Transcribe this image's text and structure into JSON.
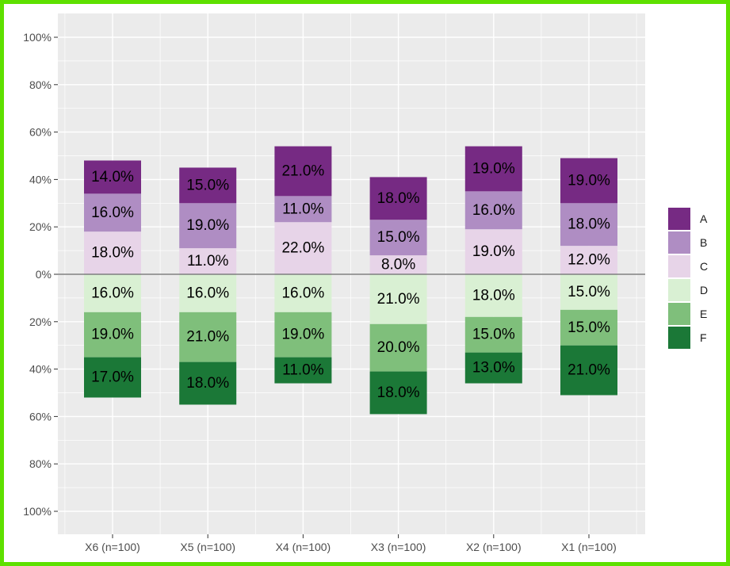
{
  "chart_data": {
    "type": "bar",
    "orientation": "diverging-stacked",
    "title": "",
    "xlabel": "",
    "ylabel": "",
    "ylim": [
      -1.0,
      1.0
    ],
    "y_ticks": [
      {
        "value": 1.0,
        "label": "100%"
      },
      {
        "value": 0.8,
        "label": "80%"
      },
      {
        "value": 0.6,
        "label": "60%"
      },
      {
        "value": 0.4,
        "label": "40%"
      },
      {
        "value": 0.2,
        "label": "20%"
      },
      {
        "value": 0.0,
        "label": "0%"
      },
      {
        "value": -0.2,
        "label": "20%"
      },
      {
        "value": -0.4,
        "label": "40%"
      },
      {
        "value": -0.6,
        "label": "60%"
      },
      {
        "value": -0.8,
        "label": "80%"
      },
      {
        "value": -1.0,
        "label": "100%"
      }
    ],
    "categories": [
      "X6 (n=100)",
      "X5 (n=100)",
      "X4 (n=100)",
      "X3 (n=100)",
      "X2 (n=100)",
      "X1 (n=100)"
    ],
    "positive_stack_order": [
      "C",
      "B",
      "A"
    ],
    "negative_stack_order": [
      "D",
      "E",
      "F"
    ],
    "series": [
      {
        "name": "A",
        "color": "#762a83",
        "values": [
          0.14,
          0.15,
          0.21,
          0.18,
          0.19,
          0.19
        ],
        "labels": [
          "14.0%",
          "15.0%",
          "21.0%",
          "18.0%",
          "19.0%",
          "19.0%"
        ]
      },
      {
        "name": "B",
        "color": "#af8dc3",
        "values": [
          0.16,
          0.19,
          0.11,
          0.15,
          0.16,
          0.18
        ],
        "labels": [
          "16.0%",
          "19.0%",
          "11.0%",
          "15.0%",
          "16.0%",
          "18.0%"
        ]
      },
      {
        "name": "C",
        "color": "#e7d4e8",
        "values": [
          0.18,
          0.11,
          0.22,
          0.08,
          0.19,
          0.12
        ],
        "labels": [
          "18.0%",
          "11.0%",
          "22.0%",
          "8.0%",
          "19.0%",
          "12.0%"
        ]
      },
      {
        "name": "D",
        "color": "#d9f0d3",
        "values": [
          0.16,
          0.16,
          0.16,
          0.21,
          0.18,
          0.15
        ],
        "labels": [
          "16.0%",
          "16.0%",
          "16.0%",
          "21.0%",
          "18.0%",
          "15.0%"
        ]
      },
      {
        "name": "E",
        "color": "#7fbf7b",
        "values": [
          0.19,
          0.21,
          0.19,
          0.2,
          0.15,
          0.15
        ],
        "labels": [
          "19.0%",
          "21.0%",
          "19.0%",
          "20.0%",
          "15.0%",
          "15.0%"
        ]
      },
      {
        "name": "F",
        "color": "#1b7837",
        "values": [
          0.17,
          0.18,
          0.11,
          0.18,
          0.13,
          0.21
        ],
        "labels": [
          "17.0%",
          "18.0%",
          "11.0%",
          "18.0%",
          "13.0%",
          "21.0%"
        ]
      }
    ],
    "legend": {
      "position": "right",
      "entries": [
        "A",
        "B",
        "C",
        "D",
        "E",
        "F"
      ]
    },
    "grid": true,
    "zero_line": true
  }
}
